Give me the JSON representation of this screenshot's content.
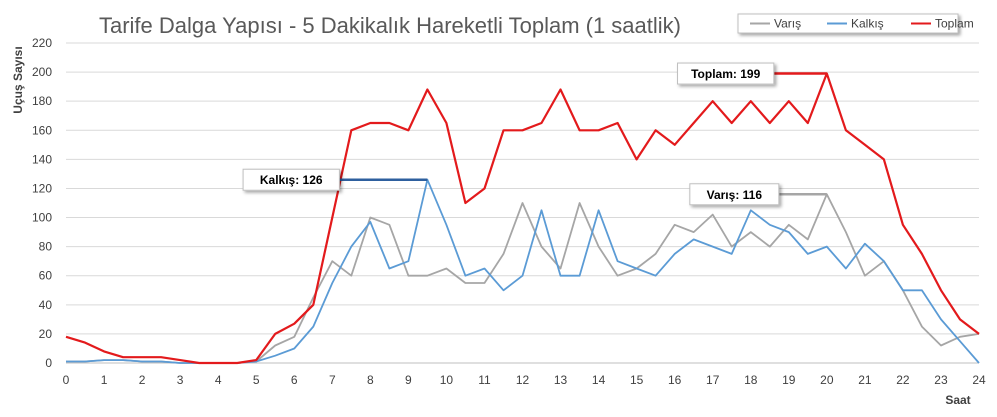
{
  "chart_data": {
    "type": "line",
    "title": "Tarife Dalga Yapısı - 5 Dakikalık Hareketli Toplam (1 saatlik)",
    "xlabel": "Saat",
    "ylabel": "Uçuş Sayısı",
    "xlim": [
      0,
      24
    ],
    "ylim": [
      0,
      220
    ],
    "x_ticks": [
      "0",
      "1",
      "2",
      "3",
      "4",
      "5",
      "6",
      "7",
      "8",
      "9",
      "10",
      "11",
      "12",
      "13",
      "14",
      "15",
      "16",
      "17",
      "18",
      "19",
      "20",
      "21",
      "22",
      "23",
      "24"
    ],
    "y_ticks": [
      "0",
      "20",
      "40",
      "60",
      "80",
      "100",
      "120",
      "140",
      "160",
      "180",
      "200",
      "220"
    ],
    "grid": "horizontal",
    "legend_position": "top-right",
    "x": [
      0,
      0.5,
      1,
      1.5,
      2,
      2.5,
      3,
      3.5,
      4,
      4.5,
      5,
      5.5,
      6,
      6.5,
      7,
      7.5,
      8,
      8.5,
      9,
      9.5,
      10,
      10.5,
      11,
      11.5,
      12,
      12.5,
      13,
      13.5,
      14,
      14.5,
      15,
      15.5,
      16,
      16.5,
      17,
      17.5,
      18,
      18.5,
      19,
      19.5,
      20,
      20.5,
      21,
      21.5,
      22,
      22.5,
      23,
      23.5,
      24
    ],
    "series": [
      {
        "name": "Varış",
        "color": "#a6a6a6",
        "values": [
          1,
          1,
          2,
          2,
          1,
          1,
          0,
          0,
          0,
          0,
          1,
          12,
          18,
          45,
          70,
          60,
          100,
          95,
          60,
          60,
          65,
          55,
          55,
          75,
          110,
          80,
          65,
          110,
          80,
          60,
          65,
          75,
          95,
          90,
          102,
          80,
          90,
          80,
          95,
          85,
          116,
          90,
          60,
          70,
          50,
          25,
          12,
          18,
          20
        ]
      },
      {
        "name": "Kalkış",
        "color": "#5b9bd5",
        "values": [
          1,
          1,
          2,
          2,
          1,
          1,
          0,
          0,
          0,
          0,
          1,
          5,
          10,
          25,
          55,
          80,
          97,
          65,
          70,
          126,
          95,
          60,
          65,
          50,
          60,
          105,
          60,
          60,
          105,
          70,
          65,
          60,
          75,
          85,
          80,
          75,
          105,
          95,
          90,
          75,
          80,
          65,
          82,
          70,
          50,
          50,
          30,
          15,
          0
        ]
      },
      {
        "name": "Toplam",
        "color": "#e31a1c",
        "values": [
          18,
          14,
          8,
          4,
          4,
          4,
          2,
          0,
          0,
          0,
          2,
          20,
          27,
          40,
          100,
          160,
          165,
          165,
          160,
          188,
          165,
          110,
          120,
          160,
          160,
          165,
          188,
          160,
          160,
          165,
          140,
          160,
          150,
          165,
          180,
          165,
          180,
          165,
          180,
          165,
          199,
          160,
          150,
          140,
          95,
          75,
          50,
          30,
          20
        ]
      }
    ],
    "annotations": [
      {
        "text": "Kalkış: 126",
        "series": "Kalkış",
        "value": 126
      },
      {
        "text": "Toplam: 199",
        "series": "Toplam",
        "value": 199
      },
      {
        "text": "Varış: 116",
        "series": "Varış",
        "value": 116
      }
    ]
  }
}
